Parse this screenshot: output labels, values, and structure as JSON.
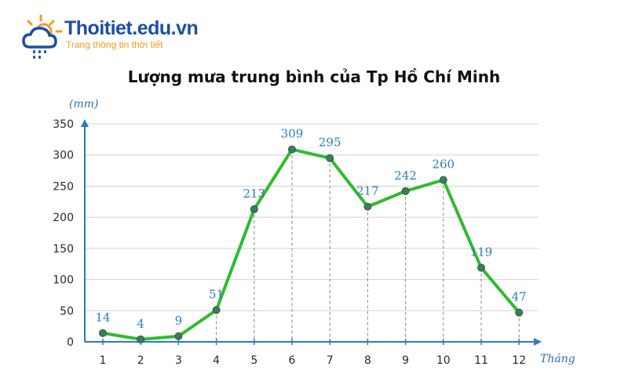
{
  "logo": {
    "name": "Thoitiet.edu.vn",
    "tagline": "Trang thông tin thời tiết",
    "icon": "sun-cloud-rain-icon",
    "colors": {
      "sun": "#f29a1f",
      "cloud": "#1a4fa3",
      "rain": "#1a4fa3"
    }
  },
  "chart_data": {
    "type": "line",
    "title": "Lượng mưa trung bình của Tp Hồ Chí Minh",
    "ylabel": "(mm)",
    "xlabel": "Tháng",
    "categories": [
      "1",
      "2",
      "3",
      "4",
      "5",
      "6",
      "7",
      "8",
      "9",
      "10",
      "11",
      "12"
    ],
    "series": [
      {
        "values": [
          14,
          4,
          9,
          51,
          213,
          309,
          295,
          217,
          242,
          260,
          119,
          47
        ],
        "color": "#2dbd2d"
      }
    ],
    "data_labels": [
      "14",
      "4",
      "9",
      "51",
      "213",
      "309",
      "295",
      "217",
      "242",
      "260",
      "119",
      "47"
    ],
    "yticks": [
      0,
      50,
      100,
      150,
      200,
      250,
      300,
      350
    ],
    "ylim": [
      0,
      350
    ],
    "grid": true,
    "colors": {
      "line": "#2dbd2d",
      "marker": "#3a7d5a",
      "axis": "#2b7bbf",
      "label": "#2b7bbf",
      "grid": "#cfd3d6"
    }
  }
}
